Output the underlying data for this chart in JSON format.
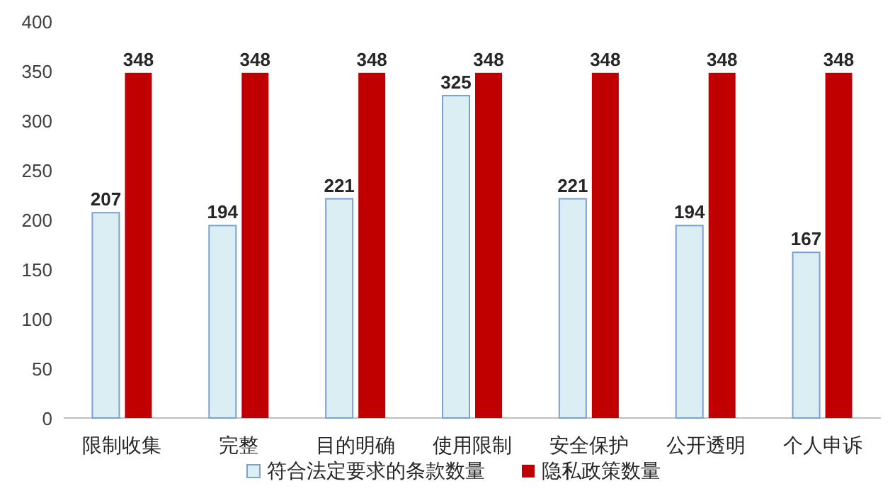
{
  "chart_data": {
    "type": "bar",
    "categories": [
      "限制收集",
      "完整",
      "目的明确",
      "使用限制",
      "安全保护",
      "公开透明",
      "个人申诉"
    ],
    "series": [
      {
        "name": "符合法定要求的条款数量",
        "color": "#dbeef4",
        "values": [
          207,
          194,
          221,
          325,
          221,
          194,
          167
        ]
      },
      {
        "name": "隐私政策数量",
        "color": "#c00000",
        "values": [
          348,
          348,
          348,
          348,
          348,
          348,
          348
        ]
      }
    ],
    "ylim": [
      0,
      400
    ],
    "yticks": [
      0,
      50,
      100,
      150,
      200,
      250,
      300,
      350,
      400
    ],
    "grid": false,
    "legend": "bottom",
    "data_labels": true
  }
}
